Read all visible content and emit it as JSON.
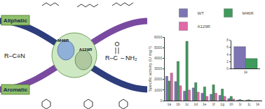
{
  "diagram": {
    "top_label": "Aliphatic",
    "bottom_label": "Aromatic",
    "enzymes": [
      "M46R",
      "A129R"
    ],
    "substrate": "R–C≡N",
    "product": {
      "left": "R–C",
      "top": "O",
      "right": "NH₂"
    }
  },
  "chart_data": [
    {
      "type": "bar",
      "y_label": "Specific activity (U mg⁻¹)",
      "categories": [
        "1a",
        "1b",
        "1c",
        "1d",
        "1e",
        "1f",
        "1g",
        "1h",
        "1i",
        "1j",
        "1k"
      ],
      "series": [
        {
          "name": "WT",
          "color": "#7d74b4",
          "values": [
            2300,
            1800,
            900,
            1200,
            700,
            600,
            500,
            200,
            50,
            40,
            6
          ]
        },
        {
          "name": "M46R",
          "color": "#3f9a5c",
          "values": [
            1850,
            3700,
            5600,
            1700,
            1300,
            1500,
            1100,
            400,
            100,
            80,
            3
          ]
        },
        {
          "name": "A129R",
          "color": "#e06aa8",
          "values": [
            2600,
            1400,
            1000,
            800,
            400,
            700,
            400,
            150,
            30,
            20,
            2
          ]
        }
      ],
      "ylim": [
        0,
        6000
      ],
      "yticks": [
        0,
        1000,
        2000,
        3000,
        4000,
        5000,
        6000
      ],
      "legend": "top",
      "grid": false
    },
    {
      "type": "bar",
      "categories": [
        "1k"
      ],
      "series": [
        {
          "name": "WT",
          "color": "#7d74b4",
          "values": [
            6.2
          ]
        },
        {
          "name": "M46R",
          "color": "#3f9a5c",
          "values": [
            2.9
          ]
        }
      ],
      "ylim": [
        0,
        8
      ],
      "yticks": [
        0,
        2,
        4,
        6,
        8
      ],
      "grid": false
    }
  ]
}
